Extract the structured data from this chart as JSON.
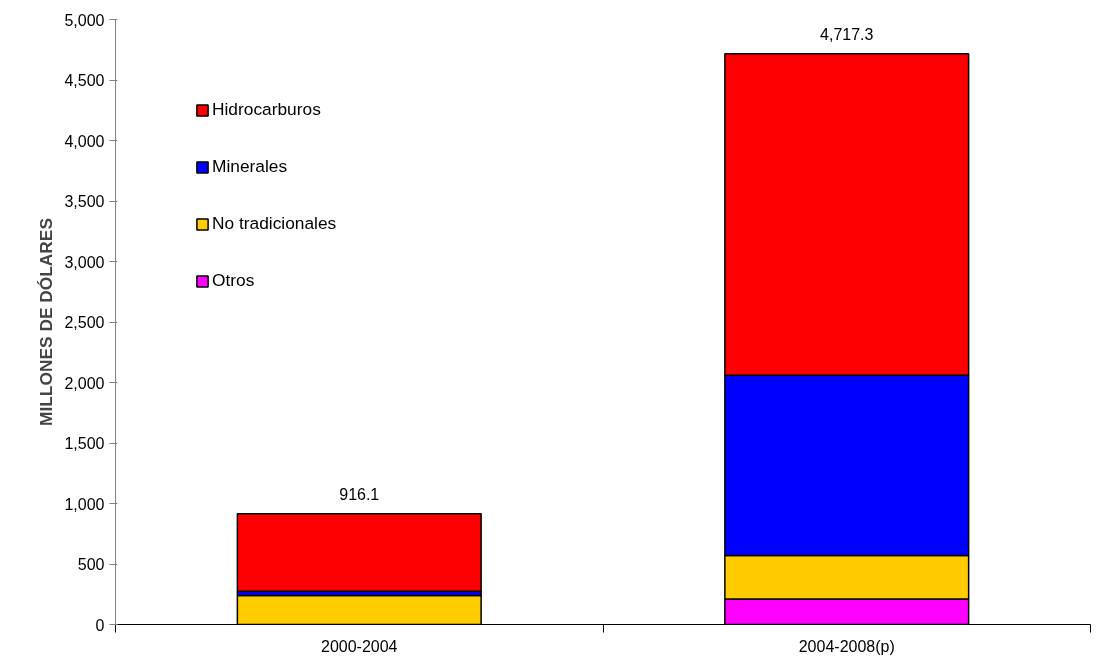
{
  "chart_data": {
    "type": "bar",
    "stacked": true,
    "ylabel": "MILLONES DE DÓLARES",
    "categories": [
      "2000-2004",
      "2004-2008(p)"
    ],
    "series": [
      {
        "name": "Otros",
        "color": "#ff00ff",
        "values": [
          0,
          210
        ]
      },
      {
        "name": "No tradicionales",
        "color": "#ffcc00",
        "values": [
          240,
          360
        ]
      },
      {
        "name": "Minerales",
        "color": "#0000ff",
        "values": [
          35,
          1490
        ]
      },
      {
        "name": "Hidrocarburos",
        "color": "#ff0000",
        "values": [
          641.1,
          2657.3
        ]
      }
    ],
    "totals": [
      "916.1",
      "4,717.3"
    ],
    "ylim": [
      0,
      5000
    ],
    "yticks": [
      {
        "value": 0,
        "label": "0"
      },
      {
        "value": 500,
        "label": "500"
      },
      {
        "value": 1000,
        "label": "1,000"
      },
      {
        "value": 1500,
        "label": "1,500"
      },
      {
        "value": 2000,
        "label": "2,000"
      },
      {
        "value": 2500,
        "label": "2,500"
      },
      {
        "value": 3000,
        "label": "3,000"
      },
      {
        "value": 3500,
        "label": "3,500"
      },
      {
        "value": 4000,
        "label": "4,000"
      },
      {
        "value": 4500,
        "label": "4,500"
      },
      {
        "value": 5000,
        "label": "5,000"
      }
    ],
    "grid": false,
    "legend": "top left"
  }
}
